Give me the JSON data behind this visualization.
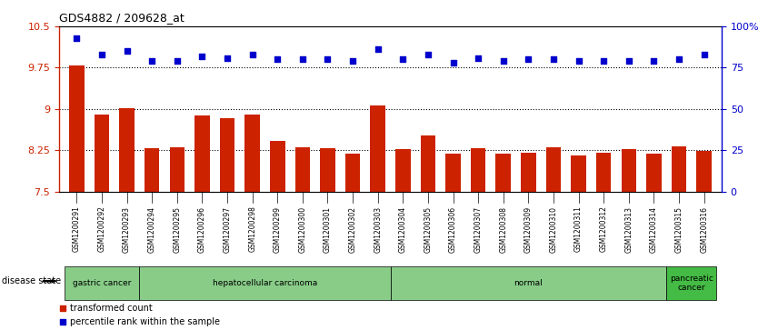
{
  "title": "GDS4882 / 209628_at",
  "samples": [
    "GSM1200291",
    "GSM1200292",
    "GSM1200293",
    "GSM1200294",
    "GSM1200295",
    "GSM1200296",
    "GSM1200297",
    "GSM1200298",
    "GSM1200299",
    "GSM1200300",
    "GSM1200301",
    "GSM1200302",
    "GSM1200303",
    "GSM1200304",
    "GSM1200305",
    "GSM1200306",
    "GSM1200307",
    "GSM1200308",
    "GSM1200309",
    "GSM1200310",
    "GSM1200311",
    "GSM1200312",
    "GSM1200313",
    "GSM1200314",
    "GSM1200315",
    "GSM1200316"
  ],
  "bar_values": [
    9.79,
    8.89,
    9.01,
    8.28,
    8.3,
    8.88,
    8.83,
    8.89,
    8.42,
    8.31,
    8.29,
    8.19,
    9.06,
    8.27,
    8.52,
    8.19,
    8.29,
    8.19,
    8.21,
    8.31,
    8.16,
    8.2,
    8.27,
    8.19,
    8.32,
    8.23
  ],
  "percentile_values": [
    93,
    83,
    85,
    79,
    79,
    82,
    81,
    83,
    80,
    80,
    80,
    79,
    86,
    80,
    83,
    78,
    81,
    79,
    80,
    80,
    79,
    79,
    79,
    79,
    80,
    83
  ],
  "bar_color": "#cc2200",
  "dot_color": "#0000cc",
  "ylim_left": [
    7.5,
    10.5
  ],
  "ylim_right": [
    0,
    100
  ],
  "yticks_left": [
    7.5,
    8.25,
    9.0,
    9.75,
    10.5
  ],
  "ytick_labels_left": [
    "7.5",
    "8.25",
    "9",
    "9.75",
    "10.5"
  ],
  "yticks_right": [
    0,
    25,
    50,
    75,
    100
  ],
  "ytick_labels_right": [
    "0",
    "25",
    "50",
    "75",
    "100%"
  ],
  "hlines": [
    8.25,
    9.0,
    9.75
  ],
  "disease_groups": [
    {
      "label": "gastric cancer",
      "start": 0,
      "end": 3,
      "color": "#88cc88"
    },
    {
      "label": "hepatocellular carcinoma",
      "start": 3,
      "end": 13,
      "color": "#88cc88"
    },
    {
      "label": "normal",
      "start": 13,
      "end": 24,
      "color": "#88cc88"
    },
    {
      "label": "pancreatic\ncancer",
      "start": 24,
      "end": 26,
      "color": "#44bb44"
    }
  ],
  "legend_items": [
    {
      "label": "transformed count",
      "color": "#cc2200"
    },
    {
      "label": "percentile rank within the sample",
      "color": "#0000cc"
    }
  ],
  "disease_label": "disease state",
  "background_color": "#ffffff",
  "plot_bg_color": "#ffffff",
  "bar_bottom": 7.5,
  "xtick_bg_color": "#cccccc"
}
